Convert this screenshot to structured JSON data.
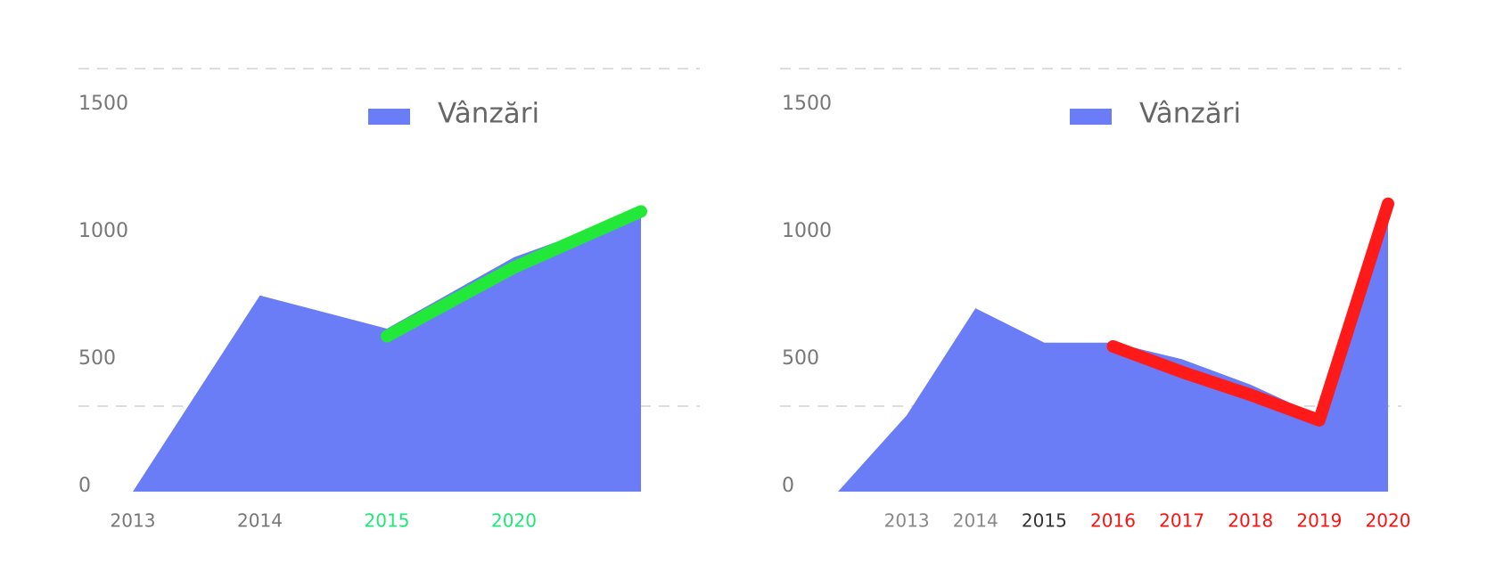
{
  "chart_data": [
    {
      "type": "area",
      "legend": "Vânzări",
      "color": "#6a7cf6",
      "categories": [
        "2013",
        "2014",
        "2015",
        "2020",
        null
      ],
      "category_label_colors": [
        "#777777",
        "#777777",
        "#1de87a",
        "#1de87a",
        "#777777"
      ],
      "values": [
        0,
        770,
        640,
        920,
        1100
      ],
      "annotation": {
        "color": "#22e83a",
        "values": [
          null,
          null,
          610,
          880,
          1100
        ]
      },
      "ylim": [
        0,
        1500
      ],
      "yticks": [
        0,
        500,
        1000,
        1500
      ]
    },
    {
      "type": "area",
      "legend": "Vânzări",
      "color": "#6a7cf6",
      "categories": [
        null,
        "2013",
        "2014",
        "2015",
        "2016",
        "2017",
        "2018",
        "2019",
        "2020"
      ],
      "category_label_colors": [
        "#888888",
        "#888888",
        "#888888",
        "#333333",
        "#ff1010",
        "#ff1010",
        "#ff1010",
        "#ff1010",
        "#ff1010"
      ],
      "values": [
        0,
        300,
        720,
        585,
        585,
        520,
        420,
        296,
        1100
      ],
      "annotation": {
        "color": "#ff1a1a",
        "values": [
          null,
          null,
          null,
          null,
          570,
          470,
          380,
          280,
          1130
        ]
      },
      "ylim": [
        0,
        1500
      ],
      "yticks": [
        0,
        500,
        1000,
        1500
      ]
    }
  ]
}
